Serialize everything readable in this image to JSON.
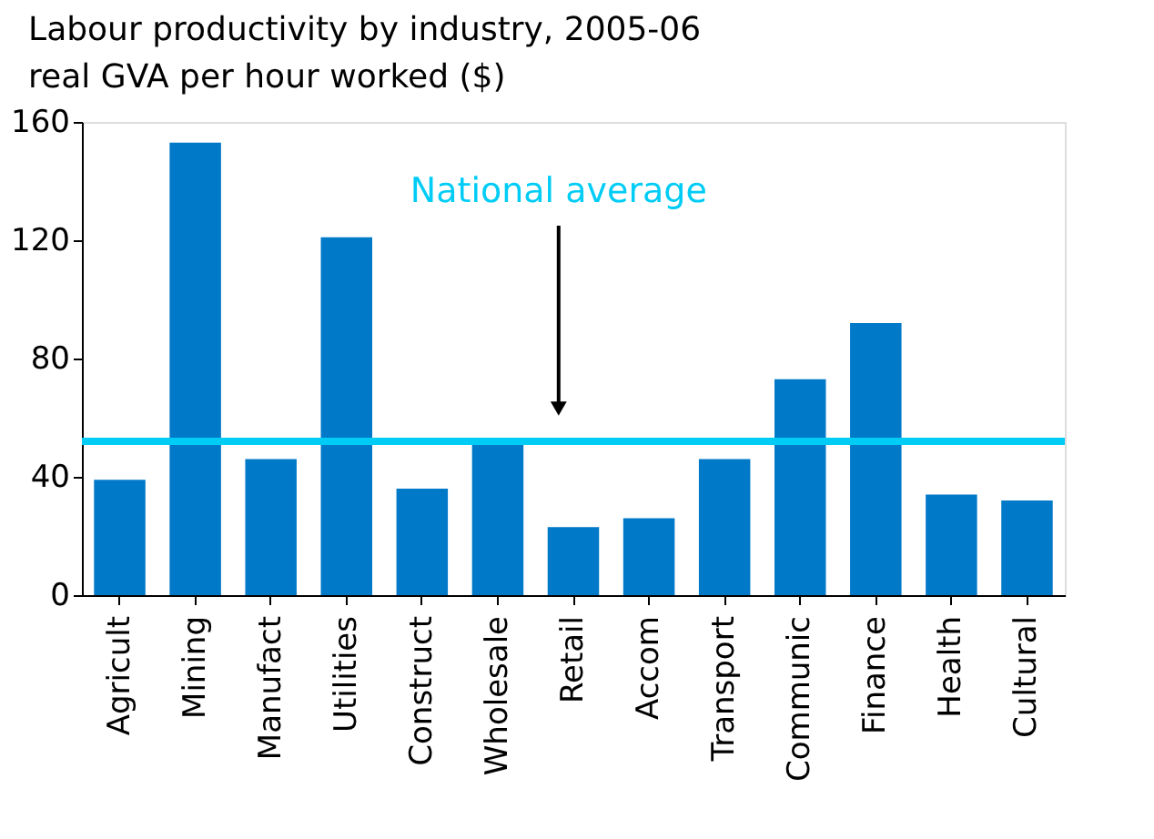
{
  "chart_data": {
    "type": "bar",
    "title": "Labour productivity by industry, 2005-06",
    "subtitle": "real GVA per hour worked ($)",
    "categories": [
      "Agricult",
      "Mining",
      "Manufact",
      "Utilities",
      "Construct",
      "Wholesale",
      "Retail",
      "Accom",
      "Transport",
      "Communic",
      "Finance",
      "Health",
      "Cultural"
    ],
    "values": [
      39,
      153,
      46,
      121,
      36,
      52,
      23,
      26,
      46,
      73,
      92,
      34,
      32
    ],
    "color": "#0079c8",
    "ylim": [
      0,
      160
    ],
    "yticks": [
      0,
      40,
      80,
      120,
      160
    ],
    "ref_lines": [
      {
        "axis": "y",
        "value": 52,
        "label": "National average",
        "color": "#00ccf5"
      }
    ]
  }
}
